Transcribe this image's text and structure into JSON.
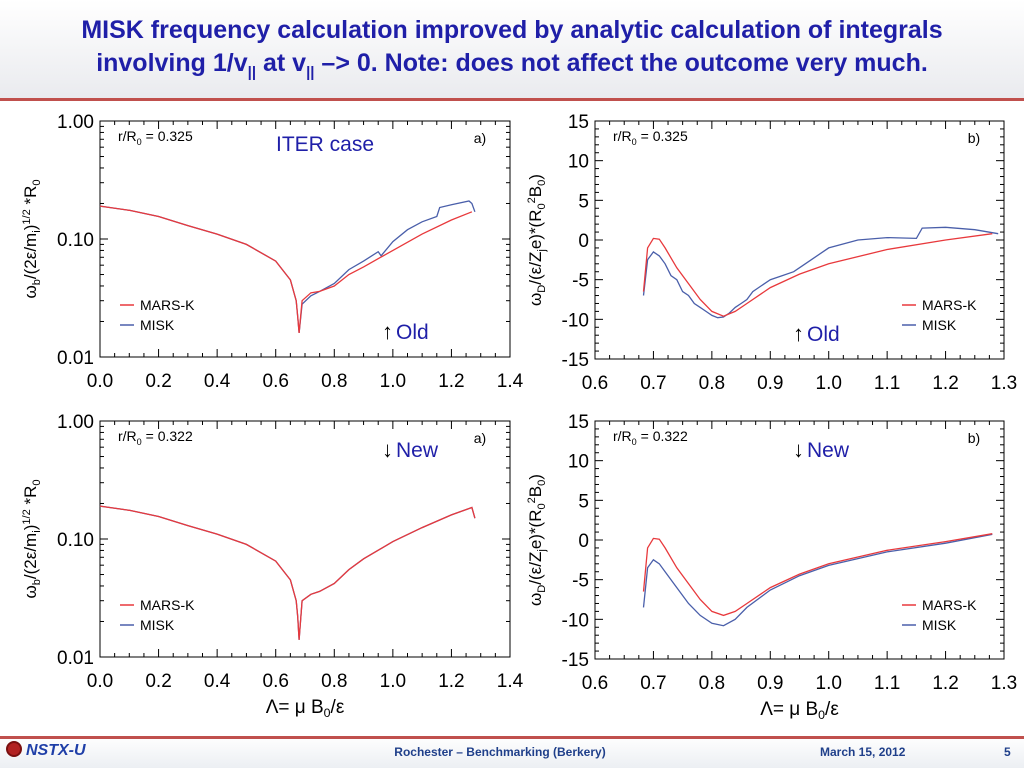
{
  "slide": {
    "title_line1": "MISK frequency calculation improved by analytic calculation of integrals",
    "title_line2_a": "involving 1/v",
    "title_line2_sub1": "||",
    "title_line2_b": " at v",
    "title_line2_sub2": "||",
    "title_line2_c": " –> 0.  Note: does not affect the outcome very much.",
    "footer_logo": "NSTX-U",
    "footer_center": "Rochester – Benchmarking (Berkery)",
    "footer_date": "March 15, 2012",
    "footer_page": "5"
  },
  "colors": {
    "mars_k": "#e8393c",
    "misk": "#4a5faa",
    "title": "#1f1fa8",
    "rule": "#c0504d",
    "annotation": "#1f1fa8"
  },
  "chart_data": [
    {
      "id": "bounce-old",
      "type": "line",
      "yscale": "log",
      "xlim": [
        0.0,
        1.4
      ],
      "ylim": [
        0.01,
        1.0
      ],
      "xticks": [
        "0.0",
        "0.2",
        "0.4",
        "0.6",
        "0.8",
        "1.0",
        "1.2",
        "1.4"
      ],
      "yticks": [
        "1.00",
        "0.10",
        "0.01"
      ],
      "xlabel": "",
      "ylabel": "ωb/(2ε/mi)1/2 *R0",
      "param_label": "r/R0 = 0.325",
      "panel_tag": "a)",
      "case_label": "ITER case",
      "note": "Old",
      "note_arrow": "↑",
      "legend": [
        "MARS-K",
        "MISK"
      ],
      "series": [
        {
          "name": "MARS-K",
          "x": [
            0.0,
            0.1,
            0.2,
            0.3,
            0.4,
            0.5,
            0.6,
            0.65,
            0.67,
            0.675,
            0.68,
            0.69,
            0.72,
            0.75,
            0.8,
            0.85,
            0.9,
            1.0,
            1.1,
            1.2,
            1.27
          ],
          "y": [
            0.19,
            0.175,
            0.155,
            0.13,
            0.11,
            0.09,
            0.065,
            0.045,
            0.03,
            0.022,
            0.016,
            0.03,
            0.035,
            0.036,
            0.04,
            0.05,
            0.058,
            0.08,
            0.11,
            0.145,
            0.17
          ]
        },
        {
          "name": "MISK",
          "x": [
            0.0,
            0.1,
            0.2,
            0.3,
            0.4,
            0.5,
            0.6,
            0.65,
            0.67,
            0.675,
            0.68,
            0.69,
            0.72,
            0.75,
            0.8,
            0.85,
            0.9,
            0.95,
            0.96,
            1.0,
            1.05,
            1.1,
            1.15,
            1.16,
            1.2,
            1.26,
            1.27,
            1.28
          ],
          "y": [
            0.19,
            0.175,
            0.155,
            0.13,
            0.11,
            0.09,
            0.065,
            0.045,
            0.03,
            0.022,
            0.016,
            0.028,
            0.033,
            0.036,
            0.042,
            0.055,
            0.065,
            0.078,
            0.072,
            0.095,
            0.12,
            0.14,
            0.155,
            0.185,
            0.195,
            0.21,
            0.2,
            0.17
          ]
        }
      ]
    },
    {
      "id": "drift-old",
      "type": "line",
      "yscale": "linear",
      "xlim": [
        0.6,
        1.3
      ],
      "ylim": [
        -15,
        15
      ],
      "xticks": [
        "0.6",
        "0.7",
        "0.8",
        "0.9",
        "1.0",
        "1.1",
        "1.2",
        "1.3"
      ],
      "yticks": [
        "15",
        "10",
        "5",
        "0",
        "-5",
        "-10",
        "-15"
      ],
      "xlabel": "",
      "ylabel": "ωD/(ε/Zje)*(R02B0)",
      "param_label": "r/R0 = 0.325",
      "panel_tag": "b)",
      "note": "Old",
      "note_arrow": "↑",
      "legend": [
        "MARS-K",
        "MISK"
      ],
      "series": [
        {
          "name": "MARS-K",
          "x": [
            0.683,
            0.69,
            0.7,
            0.71,
            0.72,
            0.74,
            0.76,
            0.78,
            0.8,
            0.82,
            0.84,
            0.86,
            0.9,
            0.95,
            1.0,
            1.1,
            1.2,
            1.28
          ],
          "y": [
            -6.5,
            -1.0,
            0.2,
            0.1,
            -1.0,
            -3.5,
            -5.5,
            -7.5,
            -9.0,
            -9.6,
            -9.0,
            -8.0,
            -6.0,
            -4.3,
            -3.0,
            -1.2,
            0.0,
            0.8
          ]
        },
        {
          "name": "MISK",
          "x": [
            0.683,
            0.69,
            0.7,
            0.71,
            0.72,
            0.73,
            0.74,
            0.75,
            0.76,
            0.77,
            0.78,
            0.79,
            0.8,
            0.81,
            0.82,
            0.83,
            0.84,
            0.85,
            0.86,
            0.87,
            0.88,
            0.9,
            0.92,
            0.94,
            0.96,
            1.0,
            1.05,
            1.1,
            1.15,
            1.16,
            1.2,
            1.25,
            1.29
          ],
          "y": [
            -7.0,
            -2.5,
            -1.5,
            -2.0,
            -3.0,
            -4.5,
            -5.0,
            -6.5,
            -7.0,
            -8.0,
            -8.5,
            -9.0,
            -9.5,
            -9.8,
            -9.7,
            -9.2,
            -8.5,
            -8.0,
            -7.5,
            -6.5,
            -6.0,
            -5.0,
            -4.5,
            -4.0,
            -3.0,
            -1.0,
            0.0,
            0.3,
            0.2,
            1.5,
            1.6,
            1.3,
            0.8
          ]
        }
      ]
    },
    {
      "id": "bounce-new",
      "type": "line",
      "yscale": "log",
      "xlim": [
        0.0,
        1.4
      ],
      "ylim": [
        0.01,
        1.0
      ],
      "xticks": [
        "0.0",
        "0.2",
        "0.4",
        "0.6",
        "0.8",
        "1.0",
        "1.2",
        "1.4"
      ],
      "yticks": [
        "1.00",
        "0.10",
        "0.01"
      ],
      "xlabel": "Λ= μ B0/ε",
      "ylabel": "ωb/(2ε/mi)1/2 *R0",
      "param_label": "r/R0 = 0.322",
      "panel_tag": "a)",
      "note": "New",
      "note_arrow": "↓",
      "legend": [
        "MARS-K",
        "MISK"
      ],
      "series": [
        {
          "name": "MARS-K",
          "x": [
            0.0,
            0.1,
            0.2,
            0.3,
            0.4,
            0.5,
            0.6,
            0.65,
            0.67,
            0.675,
            0.68,
            0.69,
            0.72,
            0.75,
            0.8,
            0.85,
            0.9,
            1.0,
            1.1,
            1.2,
            1.27,
            1.28
          ],
          "y": [
            0.19,
            0.175,
            0.155,
            0.13,
            0.11,
            0.09,
            0.065,
            0.045,
            0.03,
            0.022,
            0.014,
            0.03,
            0.034,
            0.036,
            0.042,
            0.055,
            0.068,
            0.095,
            0.125,
            0.16,
            0.185,
            0.15
          ]
        },
        {
          "name": "MISK",
          "x": [
            0.0,
            0.1,
            0.2,
            0.3,
            0.4,
            0.5,
            0.6,
            0.65,
            0.67,
            0.675,
            0.68,
            0.69,
            0.72,
            0.75,
            0.8,
            0.85,
            0.9,
            1.0,
            1.1,
            1.2,
            1.27,
            1.28
          ],
          "y": [
            0.19,
            0.175,
            0.155,
            0.13,
            0.11,
            0.09,
            0.065,
            0.045,
            0.03,
            0.022,
            0.014,
            0.03,
            0.034,
            0.036,
            0.042,
            0.055,
            0.068,
            0.095,
            0.125,
            0.16,
            0.185,
            0.15
          ]
        }
      ]
    },
    {
      "id": "drift-new",
      "type": "line",
      "yscale": "linear",
      "xlim": [
        0.6,
        1.3
      ],
      "ylim": [
        -15,
        15
      ],
      "xticks": [
        "0.6",
        "0.7",
        "0.8",
        "0.9",
        "1.0",
        "1.1",
        "1.2",
        "1.3"
      ],
      "yticks": [
        "15",
        "10",
        "5",
        "0",
        "-5",
        "-10",
        "-15"
      ],
      "xlabel": "Λ= μ B0/ε",
      "ylabel": "ωD/(ε/Zje)*(R02B0)",
      "param_label": "r/R0 = 0.322",
      "panel_tag": "b)",
      "note": "New",
      "note_arrow": "↓",
      "legend": [
        "MARS-K",
        "MISK"
      ],
      "series": [
        {
          "name": "MARS-K",
          "x": [
            0.683,
            0.69,
            0.7,
            0.71,
            0.72,
            0.74,
            0.76,
            0.78,
            0.8,
            0.82,
            0.84,
            0.86,
            0.9,
            0.95,
            1.0,
            1.1,
            1.2,
            1.28
          ],
          "y": [
            -6.5,
            -1.0,
            0.2,
            0.1,
            -1.0,
            -3.5,
            -5.5,
            -7.5,
            -9.0,
            -9.5,
            -9.0,
            -8.0,
            -6.0,
            -4.3,
            -3.0,
            -1.3,
            -0.2,
            0.8
          ]
        },
        {
          "name": "MISK",
          "x": [
            0.683,
            0.69,
            0.7,
            0.71,
            0.72,
            0.74,
            0.76,
            0.78,
            0.8,
            0.82,
            0.84,
            0.86,
            0.9,
            0.95,
            1.0,
            1.1,
            1.2,
            1.28
          ],
          "y": [
            -8.5,
            -3.5,
            -2.5,
            -3.0,
            -4.0,
            -6.0,
            -8.0,
            -9.5,
            -10.5,
            -10.8,
            -10.0,
            -8.5,
            -6.3,
            -4.5,
            -3.2,
            -1.5,
            -0.4,
            0.7
          ]
        }
      ]
    }
  ]
}
